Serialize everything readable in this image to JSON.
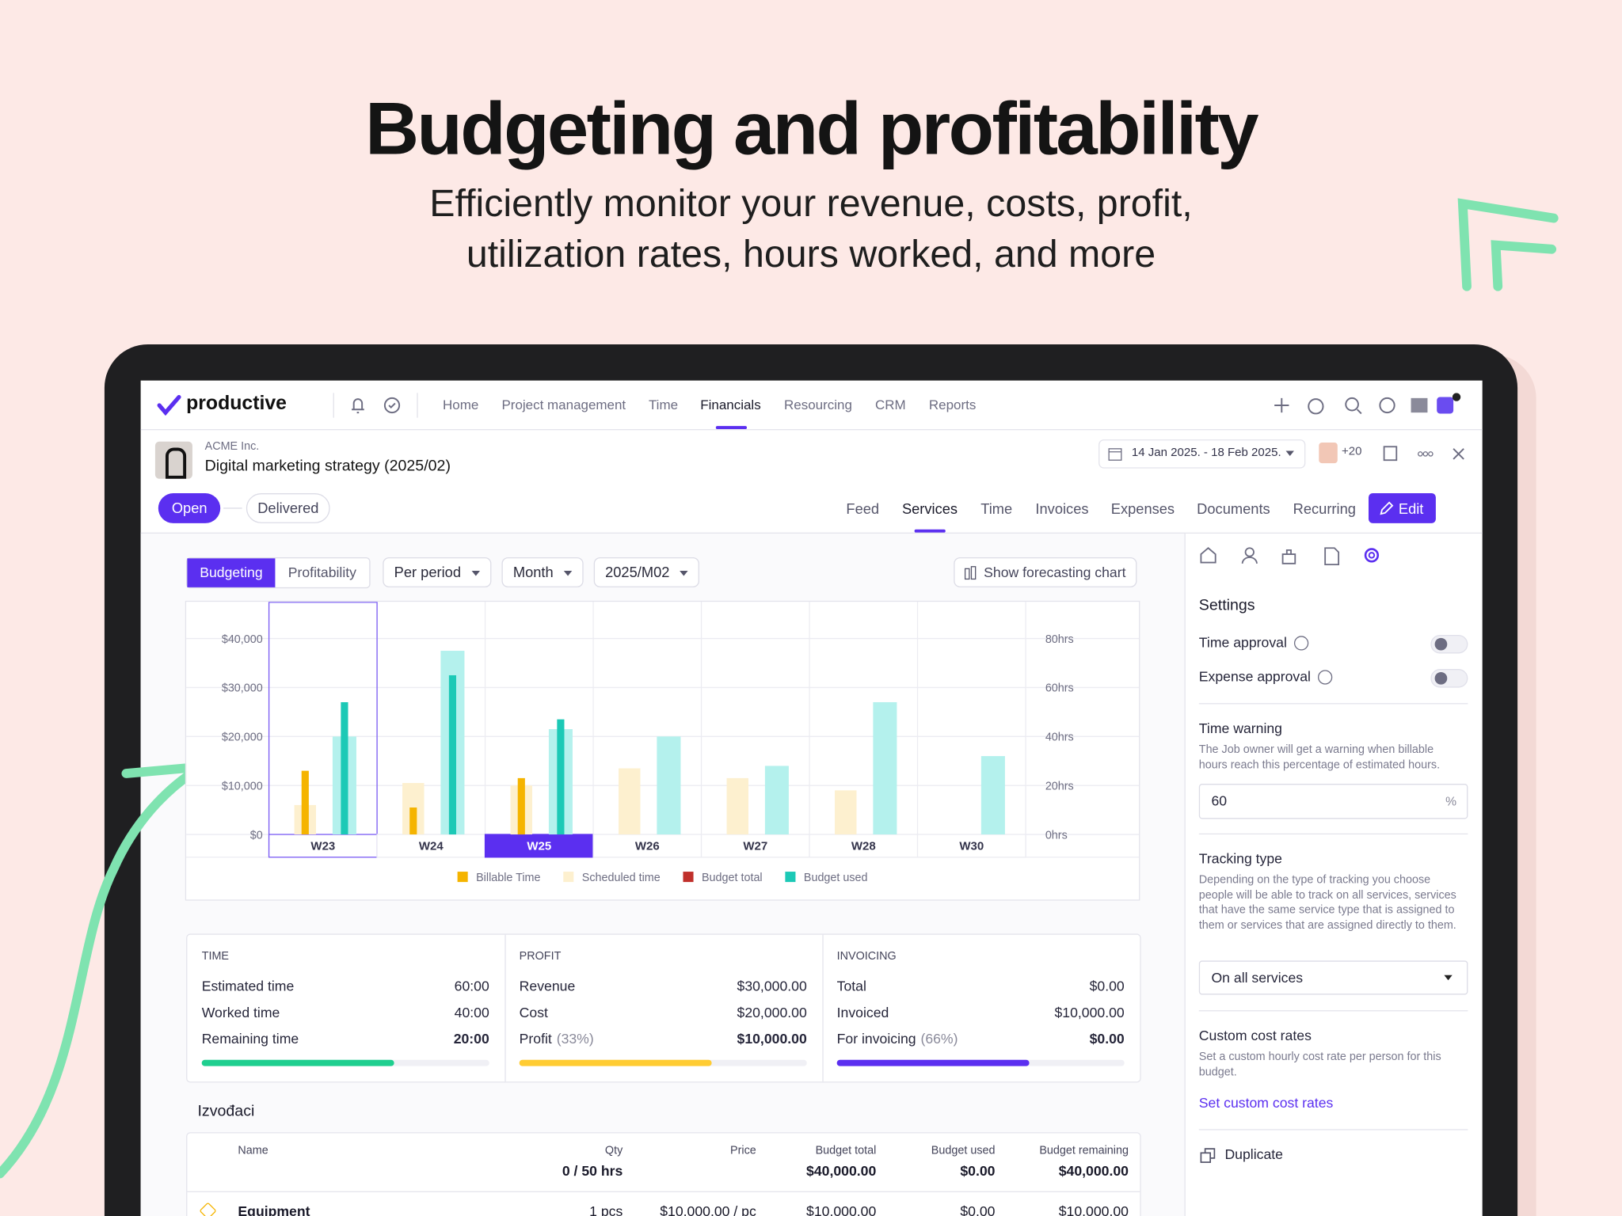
{
  "hero": {
    "title": "Budgeting and profitability",
    "subtitle_lines": [
      "Efficiently monitor your revenue, costs, profit,",
      "utilization rates, hours worked, and more"
    ]
  },
  "nav": {
    "logo": "productive",
    "items": [
      "Home",
      "Project management",
      "Time",
      "Financials",
      "Resourcing",
      "CRM",
      "Reports"
    ],
    "active": 3,
    "more_people": "+20"
  },
  "project": {
    "client": "ACME Inc.",
    "name": "Digital marketing strategy (2025/02)",
    "date_range": "14 Jan 2025. - 18 Feb 2025.",
    "statuses": [
      "Open",
      "Delivered"
    ],
    "tabs": [
      "Feed",
      "Services",
      "Time",
      "Invoices",
      "Expenses",
      "Documents",
      "Recurring"
    ],
    "active_tab": 1,
    "edit": "Edit"
  },
  "toolbar": {
    "toggle": [
      "Budgeting",
      "Profitability"
    ],
    "filters": [
      "Per period",
      "Month",
      "2025/M02"
    ],
    "forecast": "Show forecasting chart"
  },
  "chart_data": {
    "type": "bar",
    "categories": [
      "W23",
      "W24",
      "W25",
      "W26",
      "W27",
      "W28",
      "W30"
    ],
    "selected_index": 2,
    "highlighted_index": 0,
    "series": [
      {
        "name": "Billable Time",
        "color": "#f5b400",
        "legend_color": "#f5b400",
        "axis": "y2",
        "values": [
          26,
          11,
          23,
          null,
          null,
          null,
          null
        ]
      },
      {
        "name": "Scheduled time",
        "color": "#fdf0cf",
        "legend_color": "#fdf0cf",
        "axis": "y2",
        "values": [
          12,
          21,
          20,
          27,
          23,
          18,
          null
        ]
      },
      {
        "name": "Budget total",
        "color": "#b4f1ed",
        "legend_color": "#c0302b",
        "values": [
          20000,
          37500,
          21500,
          20000,
          14000,
          27000,
          16000
        ]
      },
      {
        "name": "Budget used",
        "color": "#1cc9b6",
        "legend_color": "#1cc9b6",
        "values": [
          27000,
          32500,
          23500,
          null,
          null,
          null,
          null
        ]
      }
    ],
    "ylim": [
      0,
      47500
    ],
    "yticks": [
      {
        "value": 0,
        "label": "$0"
      },
      {
        "value": 10000,
        "label": "$10,000"
      },
      {
        "value": 20000,
        "label": "$20,000"
      },
      {
        "value": 30000,
        "label": "$30,000"
      },
      {
        "value": 40000,
        "label": "$40,000"
      }
    ],
    "y2lim": [
      0,
      95
    ],
    "y2ticks": [
      {
        "value": 0,
        "label": "0hrs"
      },
      {
        "value": 20,
        "label": "20hrs"
      },
      {
        "value": 40,
        "label": "40hrs"
      },
      {
        "value": 60,
        "label": "60hrs"
      },
      {
        "value": 80,
        "label": "80hrs"
      }
    ],
    "grid": true
  },
  "summary": [
    {
      "title": "TIME",
      "color": "#1fcf8f",
      "progress": 67,
      "rows": [
        {
          "label": "Estimated time",
          "value": "60:00"
        },
        {
          "label": "Worked time",
          "value": "40:00"
        },
        {
          "label": "Remaining time",
          "value": "20:00"
        }
      ]
    },
    {
      "title": "PROFIT",
      "color": "#ffcc33",
      "progress": 67,
      "rows": [
        {
          "label": "Revenue",
          "value": "$30,000.00"
        },
        {
          "label": "Cost",
          "value": "$20,000.00"
        },
        {
          "label": "Profit",
          "note": "(33%)",
          "value": "$10,000.00"
        }
      ]
    },
    {
      "title": "INVOICING",
      "color": "#5b2ff0",
      "progress": 67,
      "rows": [
        {
          "label": "Total",
          "value": "$0.00"
        },
        {
          "label": "Invoiced",
          "value": "$10,000.00"
        },
        {
          "label": "For invoicing",
          "note": "(66%)",
          "value": "$0.00"
        }
      ]
    }
  ],
  "table": {
    "title": "Izvođaci",
    "columns": [
      "Name",
      "Qty",
      "Price",
      "Budget total",
      "Budget used",
      "Budget remaining"
    ],
    "totals": [
      "",
      "0 / 50 hrs",
      "",
      "$40,000.00",
      "$0.00",
      "$40,000.00"
    ],
    "rows": [
      [
        "Equipment",
        "1 pcs",
        "$10,000.00 / pc",
        "$10,000.00",
        "$0.00",
        "$10,000.00"
      ]
    ]
  },
  "sidebar": {
    "title": "Settings",
    "toggles": [
      "Time approval",
      "Expense approval"
    ],
    "time_warning": {
      "title": "Time warning",
      "desc": "The Job owner will get a warning when billable hours reach this percentage of estimated hours.",
      "value": "60",
      "unit": "%"
    },
    "tracking": {
      "title": "Tracking type",
      "desc": "Depending on the type of tracking you choose people will be able to track on all services, services that have the same service type that is assigned to them or services that are assigned directly to them.",
      "select": "On all services"
    },
    "custom": {
      "title": "Custom cost rates",
      "desc": "Set a custom hourly cost rate per person for this budget.",
      "link": "Set custom cost rates"
    },
    "duplicate": "Duplicate"
  }
}
